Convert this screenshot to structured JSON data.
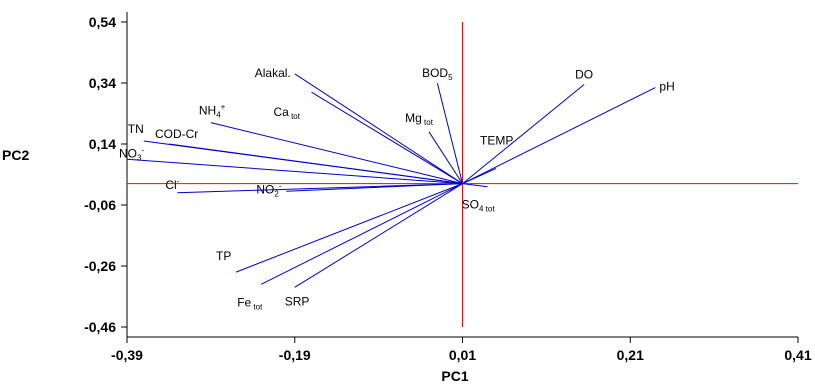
{
  "chart_data": {
    "type": "line",
    "subtype": "pca-biplot",
    "title": "",
    "xlabel": "PC1",
    "ylabel": "PC2",
    "xlim": [
      -0.39,
      0.41
    ],
    "ylim": [
      -0.46,
      0.54
    ],
    "x_ticks": [
      "-0,39",
      "-0,19",
      "0,01",
      "0,21",
      "0,41"
    ],
    "y_ticks": [
      "0,54",
      "0,34",
      "0,14",
      "-0,06",
      "-0,26",
      "-0,46"
    ],
    "grid": false,
    "origin": [
      0.01,
      0.01
    ],
    "colors": {
      "vectors": "#0000cc",
      "reference_lines": "#ff0000",
      "axes": "#000000"
    },
    "vectors": [
      {
        "label": "Alakal.",
        "base": "Alakal.",
        "sub": "",
        "sup": "",
        "x": -0.19,
        "y": 0.37
      },
      {
        "label": "Ca tot",
        "base": "Ca",
        "sub": " tot",
        "sup": "",
        "x": -0.17,
        "y": 0.31
      },
      {
        "label": "NH4+",
        "base": "NH",
        "sub": "4",
        "sup": "+",
        "x": -0.29,
        "y": 0.21
      },
      {
        "label": "BOD5",
        "base": "BOD",
        "sub": "5",
        "sup": "",
        "x": -0.02,
        "y": 0.34
      },
      {
        "label": "DO",
        "base": "DO",
        "sub": "",
        "sup": "",
        "x": 0.155,
        "y": 0.335
      },
      {
        "label": "pH",
        "base": "pH",
        "sub": "",
        "sup": "",
        "x": 0.24,
        "y": 0.325
      },
      {
        "label": "Mg tot",
        "base": "Mg",
        "sub": " tot",
        "sup": "",
        "x": -0.03,
        "y": 0.18
      },
      {
        "label": "TN",
        "base": "TN",
        "sub": "",
        "sup": "",
        "x": -0.37,
        "y": 0.15
      },
      {
        "label": "COD-Cr",
        "base": "COD-Cr",
        "sub": "",
        "sup": "",
        "x": -0.34,
        "y": 0.14
      },
      {
        "label": "NO3-",
        "base": "NO",
        "sub": "3",
        "sup": "-",
        "x": -0.39,
        "y": 0.09
      },
      {
        "label": "TEMP",
        "base": "TEMP",
        "sub": "",
        "sup": "",
        "x": 0.05,
        "y": 0.06
      },
      {
        "label": "Cl-",
        "base": "Cl",
        "sub": "",
        "sup": "-",
        "x": -0.33,
        "y": -0.02
      },
      {
        "label": "NO2-",
        "base": "NO",
        "sub": "2",
        "sup": "-",
        "x": -0.2,
        "y": -0.015
      },
      {
        "label": "SO4 tot",
        "base": "SO",
        "sub": "4 tot",
        "sup": "",
        "x": 0.04,
        "y": 0.0
      },
      {
        "label": "TP",
        "base": "TP",
        "sub": "",
        "sup": "",
        "x": -0.26,
        "y": -0.28
      },
      {
        "label": "Fe tot",
        "base": "Fe",
        "sub": " tot",
        "sup": "",
        "x": -0.23,
        "y": -0.32
      },
      {
        "label": "SRP",
        "base": "SRP",
        "sub": "",
        "sup": "",
        "x": -0.19,
        "y": -0.33
      }
    ]
  }
}
